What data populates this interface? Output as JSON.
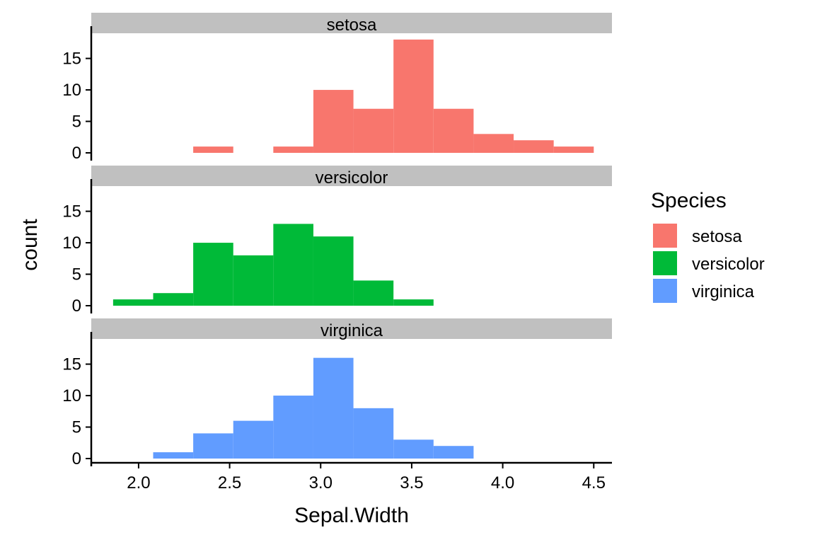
{
  "chart_data": {
    "type": "bar",
    "subtype": "faceted-histogram",
    "xlabel": "Sepal.Width",
    "ylabel": "count",
    "xlim": [
      1.74,
      4.6
    ],
    "ylim": [
      0,
      19
    ],
    "xticks": [
      2.0,
      2.5,
      3.0,
      3.5,
      4.0,
      4.5
    ],
    "xtick_labels": [
      "2.0",
      "2.5",
      "3.0",
      "3.5",
      "4.0",
      "4.5"
    ],
    "yticks": [
      0,
      5,
      10,
      15
    ],
    "ytick_labels": [
      "0",
      "5",
      "10",
      "15"
    ],
    "bin_width": 0.22,
    "grid": false,
    "legend": {
      "title": "Species",
      "position": "right",
      "entries": [
        {
          "label": "setosa",
          "color": "#F8766D"
        },
        {
          "label": "versicolor",
          "color": "#00BA38"
        },
        {
          "label": "virginica",
          "color": "#619CFF"
        }
      ]
    },
    "panels": [
      {
        "name": "setosa",
        "color": "#F8766D",
        "bins": [
          {
            "x0": 2.3,
            "x1": 2.52,
            "count": 1
          },
          {
            "x0": 2.52,
            "x1": 2.74,
            "count": 0
          },
          {
            "x0": 2.74,
            "x1": 2.96,
            "count": 1
          },
          {
            "x0": 2.96,
            "x1": 3.18,
            "count": 10
          },
          {
            "x0": 3.18,
            "x1": 3.4,
            "count": 7
          },
          {
            "x0": 3.4,
            "x1": 3.62,
            "count": 18
          },
          {
            "x0": 3.62,
            "x1": 3.84,
            "count": 7
          },
          {
            "x0": 3.84,
            "x1": 4.06,
            "count": 3
          },
          {
            "x0": 4.06,
            "x1": 4.28,
            "count": 2
          },
          {
            "x0": 4.28,
            "x1": 4.5,
            "count": 1
          }
        ]
      },
      {
        "name": "versicolor",
        "color": "#00BA38",
        "bins": [
          {
            "x0": 1.86,
            "x1": 2.08,
            "count": 1
          },
          {
            "x0": 2.08,
            "x1": 2.3,
            "count": 2
          },
          {
            "x0": 2.3,
            "x1": 2.52,
            "count": 10
          },
          {
            "x0": 2.52,
            "x1": 2.74,
            "count": 8
          },
          {
            "x0": 2.74,
            "x1": 2.96,
            "count": 13
          },
          {
            "x0": 2.96,
            "x1": 3.18,
            "count": 11
          },
          {
            "x0": 3.18,
            "x1": 3.4,
            "count": 4
          },
          {
            "x0": 3.4,
            "x1": 3.62,
            "count": 1
          }
        ]
      },
      {
        "name": "virginica",
        "color": "#619CFF",
        "bins": [
          {
            "x0": 2.08,
            "x1": 2.3,
            "count": 1
          },
          {
            "x0": 2.3,
            "x1": 2.52,
            "count": 4
          },
          {
            "x0": 2.52,
            "x1": 2.74,
            "count": 6
          },
          {
            "x0": 2.74,
            "x1": 2.96,
            "count": 10
          },
          {
            "x0": 2.96,
            "x1": 3.18,
            "count": 16
          },
          {
            "x0": 3.18,
            "x1": 3.4,
            "count": 8
          },
          {
            "x0": 3.4,
            "x1": 3.62,
            "count": 3
          },
          {
            "x0": 3.62,
            "x1": 3.84,
            "count": 2
          }
        ]
      }
    ],
    "strip_color": "#C0C0C0"
  }
}
